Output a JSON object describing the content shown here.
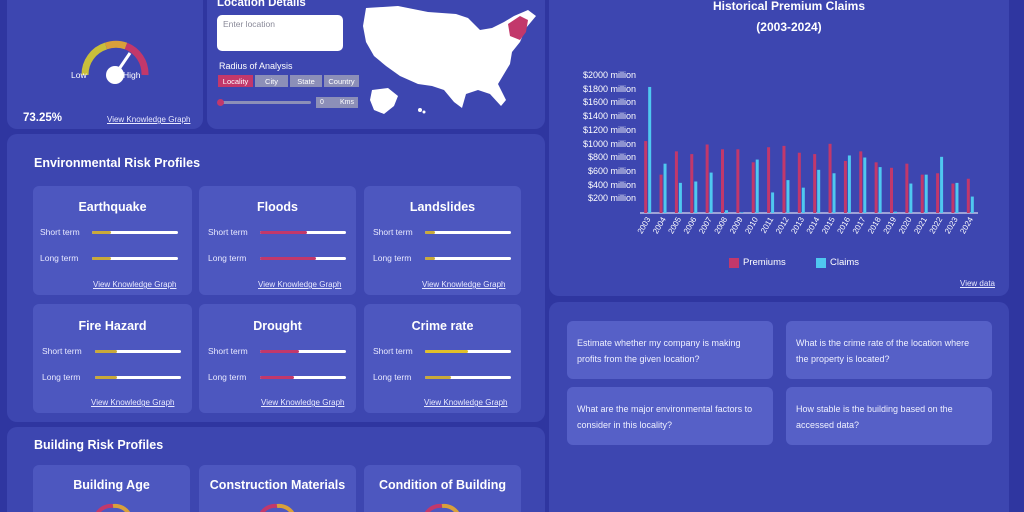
{
  "gauge_panel": {
    "low_label": "Low",
    "high_label": "High",
    "percent": "73.25%",
    "link": "View Knowledge Graph"
  },
  "location": {
    "title": "Location Details",
    "input_placeholder": "Enter location",
    "input_value": "",
    "radius_title": "Radius of Analysis",
    "radius_options": [
      "Locality",
      "City",
      "State",
      "Country"
    ],
    "slider_value": "0",
    "slider_unit": "Kms",
    "highlight_color": "#c2386b"
  },
  "environment": {
    "title": "Environmental Risk Profiles",
    "short_label": "Short term",
    "long_label": "Long term",
    "link": "View Knowledge Graph",
    "cards": [
      {
        "title": "Earthquake",
        "short": 0.22,
        "long": 0.22,
        "short_color": "#c9a93a",
        "long_color": "#c9a93a"
      },
      {
        "title": "Floods",
        "short": 0.55,
        "long": 0.65,
        "short_color": "#c2386b",
        "long_color": "#c2386b"
      },
      {
        "title": "Landslides",
        "short": 0.12,
        "long": 0.12,
        "short_color": "#c9a93a",
        "long_color": "#c9a93a"
      },
      {
        "title": "Fire Hazard",
        "short": 0.25,
        "long": 0.25,
        "short_color": "#c9a93a",
        "long_color": "#c9a93a"
      },
      {
        "title": "Drought",
        "short": 0.45,
        "long": 0.4,
        "short_color": "#c2386b",
        "long_color": "#c2386b"
      },
      {
        "title": "Crime rate",
        "short": 0.5,
        "long": 0.3,
        "short_color": "#e0bf2a",
        "long_color": "#c9a93a"
      }
    ]
  },
  "building": {
    "title": "Building Risk Profiles",
    "cards": [
      {
        "title": "Building Age"
      },
      {
        "title": "Construction Materials"
      },
      {
        "title": "Condition of Building"
      }
    ]
  },
  "chart_data": {
    "type": "bar",
    "title": "Historical Premium Claims",
    "subtitle": "(2003-2024)",
    "categories": [
      "2003",
      "2004",
      "2005",
      "2006",
      "2007",
      "2008",
      "2009",
      "2010",
      "2011",
      "2012",
      "2013",
      "2014",
      "2015",
      "2016",
      "2017",
      "2018",
      "2019",
      "2020",
      "2021",
      "2022",
      "2023",
      "2024"
    ],
    "series": [
      {
        "name": "Premiums",
        "color": "#c2386b",
        "values": [
          1050,
          560,
          900,
          860,
          1000,
          930,
          930,
          740,
          960,
          980,
          880,
          860,
          1010,
          760,
          900,
          740,
          660,
          720,
          560,
          580,
          430,
          500
        ]
      },
      {
        "name": "Claims",
        "color": "#4fc8f0",
        "values": [
          1840,
          720,
          440,
          460,
          590,
          40,
          10,
          780,
          300,
          480,
          370,
          630,
          580,
          840,
          810,
          670,
          20,
          430,
          560,
          820,
          440,
          240
        ]
      }
    ],
    "yticks": [
      "$200 million",
      "$400 million",
      "$600 million",
      "$800 million",
      "$1000 million",
      "$1200 million",
      "$1400 million",
      "$1600 million",
      "$1800 million",
      "$2000 million"
    ],
    "ylim": [
      0,
      2000
    ],
    "link": "View data"
  },
  "questions": [
    "Estimate whether my company is making profits from the given location?",
    "What is the crime rate of the location where the property is located?",
    "What are the major environmental factors to consider in this locality?",
    "How stable is the building based on the accessed data?"
  ],
  "colors": {
    "background": "#2f36a0",
    "panel": "#3d46b0",
    "card": "#4d57bf",
    "accent": "#c2386b"
  }
}
